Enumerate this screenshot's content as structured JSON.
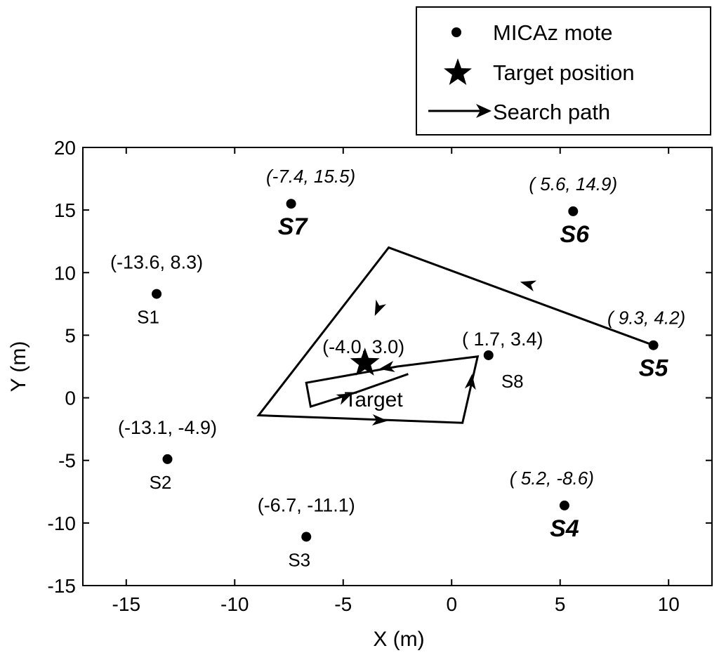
{
  "chart_data": {
    "type": "scatter",
    "xlabel": "X (m)",
    "ylabel": "Y (m)",
    "xlim": [
      -17,
      12
    ],
    "ylim": [
      -15,
      20
    ],
    "xticks": [
      -15,
      -10,
      -5,
      0,
      5,
      10
    ],
    "yticks": [
      -15,
      -10,
      -5,
      0,
      5,
      10,
      15,
      20
    ],
    "xtick_labels": [
      "-15",
      "-10",
      "-5",
      "0",
      "5",
      "10"
    ],
    "ytick_labels": [
      "-15",
      "-10",
      "-5",
      "0",
      "5",
      "10",
      "15",
      "20"
    ],
    "legend": {
      "position": "top-right",
      "items": [
        "MICAz mote",
        "Target position",
        "Search path"
      ]
    },
    "motes": [
      {
        "label": "S1",
        "x": -13.6,
        "y": 8.3,
        "coord_text": "(-13.6,  8.3)",
        "style": "plain"
      },
      {
        "label": "S2",
        "x": -13.1,
        "y": -4.9,
        "coord_text": "(-13.1, -4.9)",
        "style": "plain"
      },
      {
        "label": "S3",
        "x": -6.7,
        "y": -11.1,
        "coord_text": "(-6.7, -11.1)",
        "style": "plain"
      },
      {
        "label": "S4",
        "x": 5.2,
        "y": -8.6,
        "coord_text": "( 5.2, -8.6)",
        "style": "bold"
      },
      {
        "label": "S5",
        "x": 9.3,
        "y": 4.2,
        "coord_text": "( 9.3,  4.2)",
        "style": "bold"
      },
      {
        "label": "S6",
        "x": 5.6,
        "y": 14.9,
        "coord_text": "( 5.6, 14.9)",
        "style": "bold"
      },
      {
        "label": "S7",
        "x": -7.4,
        "y": 15.5,
        "coord_text": "(-7.4, 15.5)",
        "style": "bold"
      },
      {
        "label": "S8",
        "x": 1.7,
        "y": 3.4,
        "coord_text": "( 1.7,  3.4)",
        "style": "plain"
      }
    ],
    "target": {
      "x": -4.0,
      "y": 3.0,
      "coord_text": "(-4.0,  3.0)",
      "label": "Target"
    },
    "search_path": [
      [
        9.3,
        4.2
      ],
      [
        -2.9,
        12.0
      ],
      [
        -8.9,
        -1.4
      ],
      [
        0.5,
        -2.0
      ],
      [
        1.2,
        3.3
      ],
      [
        -2.5,
        2.5
      ],
      [
        -6.7,
        1.2
      ],
      [
        -6.5,
        -0.7
      ],
      [
        -4.3,
        0.5
      ],
      [
        -2.0,
        1.9
      ]
    ],
    "arrows": [
      {
        "x": -3.4,
        "y": 7.1,
        "dx": -0.45,
        "dy": -1
      },
      {
        "x": 3.5,
        "y": 9.1,
        "dx": -1,
        "dy": 0.28
      },
      {
        "x": -3.3,
        "y": -1.8,
        "dx": 1,
        "dy": -0.06
      },
      {
        "x": 0.9,
        "y": 1.3,
        "dx": 0.12,
        "dy": 1
      },
      {
        "x": -3.0,
        "y": 2.4,
        "dx": -1,
        "dy": -0.17
      },
      {
        "x": -4.9,
        "y": 0.1,
        "dx": 1,
        "dy": 0.45
      }
    ]
  }
}
